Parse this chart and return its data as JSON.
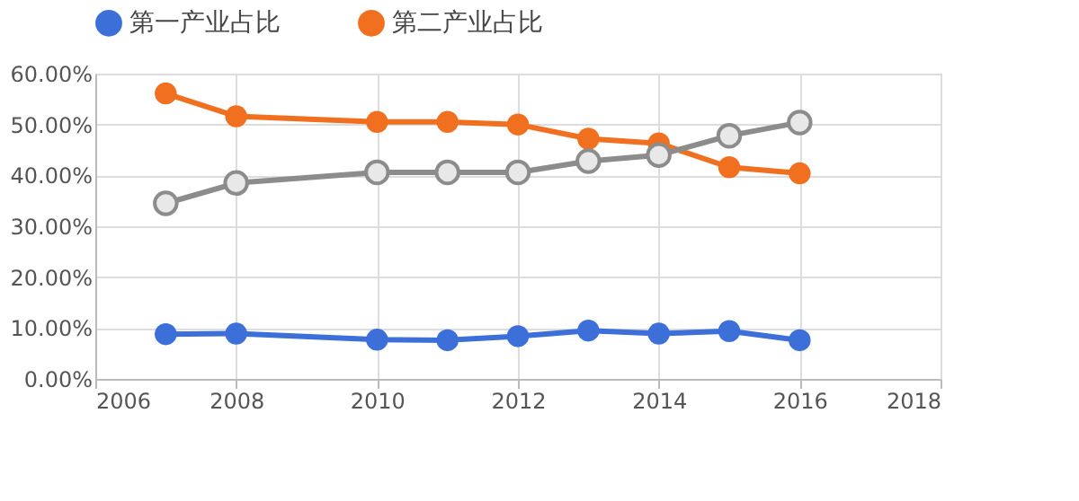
{
  "chart_data": {
    "type": "line",
    "x": [
      2007,
      2008,
      2010,
      2011,
      2012,
      2013,
      2014,
      2015,
      2016
    ],
    "series": [
      {
        "name": "第一产业占比",
        "color": "#3d6fd9",
        "values": [
          8.8,
          8.9,
          7.7,
          7.6,
          8.4,
          9.5,
          8.9,
          9.4,
          7.6
        ]
      },
      {
        "name": "第二产业占比",
        "color": "#f07020",
        "values": [
          56.1,
          51.6,
          50.5,
          50.5,
          50.0,
          47.2,
          46.3,
          41.6,
          40.4
        ]
      },
      {
        "color": "#8c8c8c",
        "values": [
          34.5,
          38.5,
          40.6,
          40.6,
          40.6,
          42.8,
          44.0,
          47.8,
          50.4
        ]
      }
    ],
    "xlim": [
      2006,
      2018
    ],
    "xticks": [
      2006,
      2008,
      2010,
      2012,
      2014,
      2016,
      2018
    ],
    "ylim": [
      0,
      60
    ],
    "yticks": [
      {
        "value": 0,
        "label": "0.00%"
      },
      {
        "value": 10,
        "label": "10.00%"
      },
      {
        "value": 20,
        "label": "20.00%"
      },
      {
        "value": 30,
        "label": "30.00%"
      },
      {
        "value": 40,
        "label": "40.00%"
      },
      {
        "value": 50,
        "label": "50.00%"
      },
      {
        "value": 60,
        "label": "60.00%"
      }
    ],
    "grid": true,
    "legend": "top",
    "marker": "circle",
    "line_style": "solid"
  }
}
